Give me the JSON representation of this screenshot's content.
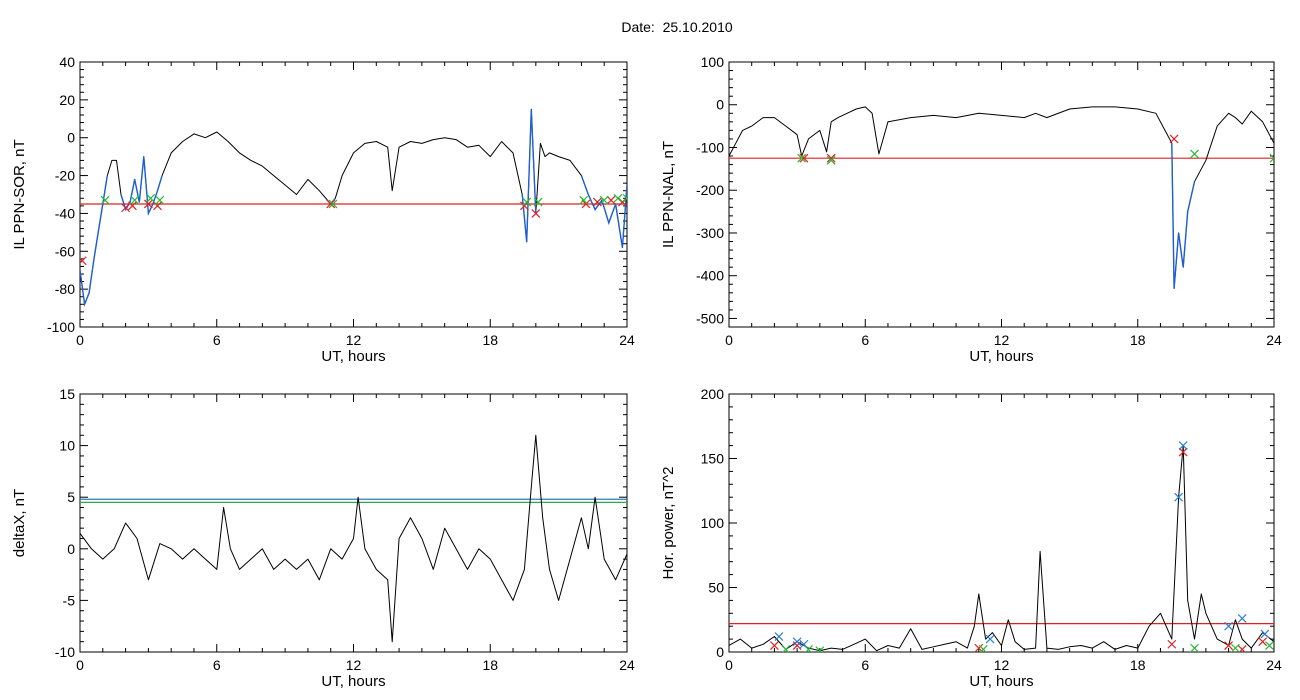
{
  "figure": {
    "title": "Date:  25.10.2010",
    "colors": {
      "trace": "#000000",
      "highlight": "#1f5fd6",
      "threshold_red": "#e02020",
      "threshold_blue": "#2a7fb8",
      "threshold_green": "#2fa84f",
      "marker_red": "#e02020",
      "marker_green": "#22bb33",
      "marker_blue": "#2a7fd8"
    }
  },
  "chart_data": [
    {
      "id": "ppn-sor",
      "type": "line",
      "xlabel": "UT, hours",
      "ylabel": "IL PPN-SOR, nT",
      "xlim": [
        0,
        24
      ],
      "ylim": [
        -100,
        40
      ],
      "xticks": [
        "0",
        "6",
        "12",
        "18",
        "24"
      ],
      "yticks": [
        "-100",
        "-80",
        "-60",
        "-40",
        "-20",
        "0",
        "20",
        "40"
      ],
      "threshold": -35,
      "x": [
        0,
        0.2,
        0.4,
        0.6,
        0.8,
        1.0,
        1.2,
        1.4,
        1.6,
        1.8,
        2.0,
        2.2,
        2.4,
        2.6,
        2.8,
        3.0,
        3.2,
        3.4,
        3.6,
        4.0,
        4.5,
        5.0,
        5.5,
        6.0,
        6.5,
        7.0,
        7.5,
        8.0,
        8.5,
        9.0,
        9.5,
        10.0,
        10.5,
        11.0,
        11.2,
        11.5,
        12.0,
        12.5,
        13.0,
        13.5,
        13.7,
        14.0,
        14.5,
        15.0,
        15.5,
        16.0,
        16.5,
        17.0,
        17.5,
        18.0,
        18.5,
        19.0,
        19.4,
        19.6,
        19.8,
        20.0,
        20.2,
        20.4,
        20.6,
        21.0,
        21.5,
        22.0,
        22.3,
        22.6,
        22.9,
        23.2,
        23.5,
        23.8,
        24.0
      ],
      "y": [
        -70,
        -88,
        -82,
        -65,
        -50,
        -35,
        -20,
        -12,
        -12,
        -30,
        -38,
        -34,
        -22,
        -34,
        -10,
        -40,
        -35,
        -28,
        -20,
        -8,
        -2,
        2,
        0,
        3,
        -2,
        -8,
        -12,
        -15,
        -20,
        -25,
        -30,
        -22,
        -28,
        -35,
        -32,
        -20,
        -8,
        -3,
        -2,
        -5,
        -28,
        -5,
        -2,
        -3,
        -1,
        0,
        -1,
        -5,
        -4,
        -10,
        -2,
        -8,
        -30,
        -55,
        15,
        -40,
        -3,
        -10,
        -8,
        -10,
        -12,
        -20,
        -30,
        -38,
        -33,
        -45,
        -35,
        -58,
        -25
      ],
      "highlight_ranges": [
        [
          0,
          1.2
        ],
        [
          1.8,
          3.6
        ],
        [
          11.0,
          11.2
        ],
        [
          19.4,
          20.0
        ],
        [
          22.0,
          24.0
        ]
      ],
      "markers_red": [
        [
          0.1,
          -65
        ],
        [
          2.0,
          -37
        ],
        [
          2.3,
          -36
        ],
        [
          3.0,
          -35
        ],
        [
          3.4,
          -36
        ],
        [
          11.0,
          -35
        ],
        [
          19.5,
          -36
        ],
        [
          20.0,
          -40
        ],
        [
          22.2,
          -35
        ],
        [
          22.7,
          -34
        ],
        [
          23.3,
          -33
        ],
        [
          23.8,
          -34
        ]
      ],
      "markers_green": [
        [
          1.1,
          -33
        ],
        [
          2.4,
          -33
        ],
        [
          3.1,
          -32
        ],
        [
          3.5,
          -33
        ],
        [
          11.1,
          -35
        ],
        [
          19.6,
          -34
        ],
        [
          20.1,
          -34
        ],
        [
          22.1,
          -33
        ],
        [
          23.0,
          -33
        ],
        [
          23.6,
          -32
        ],
        [
          24.0,
          -32
        ]
      ]
    },
    {
      "id": "ppn-nal",
      "type": "line",
      "xlabel": "UT, hours",
      "ylabel": "IL PPN-NAL, nT",
      "xlim": [
        0,
        24
      ],
      "ylim": [
        -520,
        100
      ],
      "xticks": [
        "0",
        "6",
        "12",
        "18",
        "24"
      ],
      "yticks": [
        "-500",
        "-400",
        "-300",
        "-200",
        "-100",
        "0",
        "100"
      ],
      "threshold": -125,
      "x": [
        0,
        0.3,
        0.6,
        1.0,
        1.5,
        2.0,
        2.5,
        3.0,
        3.2,
        3.5,
        4.0,
        4.3,
        4.5,
        4.8,
        5.2,
        5.6,
        6.0,
        6.3,
        6.6,
        7.0,
        8.0,
        9.0,
        10.0,
        11.0,
        12.0,
        13.0,
        13.5,
        14.0,
        15.0,
        16.0,
        17.0,
        18.0,
        18.8,
        19.2,
        19.5,
        19.6,
        19.8,
        20.0,
        20.2,
        20.5,
        21.0,
        21.5,
        22.0,
        22.3,
        22.6,
        23.0,
        23.5,
        24.0
      ],
      "y": [
        -120,
        -90,
        -60,
        -50,
        -30,
        -30,
        -50,
        -70,
        -120,
        -80,
        -60,
        -110,
        -40,
        -30,
        -20,
        -10,
        -5,
        -20,
        -115,
        -40,
        -30,
        -25,
        -30,
        -20,
        -25,
        -30,
        -20,
        -30,
        -10,
        -5,
        -5,
        -10,
        -20,
        -60,
        -90,
        -430,
        -300,
        -380,
        -250,
        -180,
        -130,
        -50,
        -20,
        -30,
        -45,
        -15,
        -40,
        -90
      ],
      "highlight_ranges": [
        [
          19.5,
          20.5
        ]
      ],
      "markers_red": [
        [
          3.3,
          -125
        ],
        [
          4.5,
          -125
        ],
        [
          19.6,
          -80
        ]
      ],
      "markers_green": [
        [
          3.2,
          -125
        ],
        [
          4.5,
          -130
        ],
        [
          20.5,
          -115
        ],
        [
          24.0,
          -125
        ]
      ]
    },
    {
      "id": "deltax",
      "type": "line",
      "xlabel": "UT, hours",
      "ylabel": "deltaX, nT",
      "xlim": [
        0,
        24
      ],
      "ylim": [
        -10,
        15
      ],
      "xticks": [
        "0",
        "6",
        "12",
        "18",
        "24"
      ],
      "yticks": [
        "-10",
        "-5",
        "0",
        "5",
        "10",
        "15"
      ],
      "threshold_lines": [
        {
          "value": 4.8,
          "color": "blue"
        },
        {
          "value": 4.5,
          "color": "green"
        }
      ],
      "x": [
        0,
        0.5,
        1.0,
        1.5,
        2.0,
        2.5,
        3.0,
        3.5,
        4.0,
        4.5,
        5.0,
        5.5,
        6.0,
        6.3,
        6.6,
        7.0,
        7.5,
        8.0,
        8.5,
        9.0,
        9.5,
        10.0,
        10.5,
        11.0,
        11.5,
        12.0,
        12.2,
        12.5,
        13.0,
        13.5,
        13.7,
        14.0,
        14.5,
        15.0,
        15.5,
        16.0,
        16.5,
        17.0,
        17.5,
        18.0,
        18.5,
        19.0,
        19.5,
        19.8,
        20.0,
        20.3,
        20.6,
        21.0,
        21.5,
        22.0,
        22.3,
        22.6,
        23.0,
        23.5,
        24.0
      ],
      "y": [
        1.5,
        0,
        -1,
        0,
        2.5,
        1,
        -3,
        0.5,
        0,
        -1,
        0,
        -1,
        -2,
        4,
        0,
        -2,
        -1,
        0,
        -2,
        -1,
        -2,
        -1,
        -3,
        0,
        -1,
        1,
        5,
        0,
        -2,
        -3,
        -9,
        1,
        3,
        1,
        -2,
        2,
        0,
        -2,
        0,
        -1,
        -3,
        -5,
        -2,
        6,
        11,
        3,
        -2,
        -5,
        -1,
        3,
        0,
        5,
        -1,
        -3,
        -0.5
      ]
    },
    {
      "id": "hor-power",
      "type": "line",
      "xlabel": "UT, hours",
      "ylabel": "Hor. power, nT^2",
      "xlim": [
        0,
        24
      ],
      "ylim": [
        0,
        200
      ],
      "xticks": [
        "0",
        "6",
        "12",
        "18",
        "24"
      ],
      "yticks": [
        "0",
        "50",
        "100",
        "150",
        "200"
      ],
      "threshold": 22,
      "x": [
        0,
        0.5,
        1.0,
        1.5,
        2.0,
        2.5,
        3.0,
        3.5,
        4.0,
        4.5,
        5.0,
        5.5,
        6.0,
        6.5,
        7.0,
        7.5,
        8.0,
        8.5,
        9.0,
        9.5,
        10.0,
        10.5,
        10.8,
        11.0,
        11.3,
        11.6,
        12.0,
        12.3,
        12.6,
        13.0,
        13.5,
        13.7,
        14.0,
        14.5,
        15.0,
        15.5,
        16.0,
        16.5,
        17.0,
        17.5,
        18.0,
        18.5,
        19.0,
        19.5,
        19.8,
        20.0,
        20.2,
        20.5,
        20.8,
        21.0,
        21.5,
        22.0,
        22.3,
        22.6,
        23.0,
        23.5,
        24.0
      ],
      "y": [
        5,
        10,
        3,
        6,
        12,
        2,
        8,
        3,
        1,
        3,
        2,
        6,
        10,
        1,
        5,
        3,
        18,
        2,
        4,
        6,
        8,
        3,
        20,
        45,
        10,
        15,
        5,
        25,
        8,
        2,
        3,
        78,
        3,
        2,
        4,
        5,
        3,
        8,
        2,
        5,
        3,
        20,
        30,
        10,
        120,
        160,
        40,
        10,
        45,
        30,
        10,
        5,
        25,
        10,
        3,
        15,
        8
      ],
      "markers_red": [
        [
          2.0,
          5
        ],
        [
          3.0,
          5
        ],
        [
          11.0,
          3
        ],
        [
          19.5,
          6
        ],
        [
          20.0,
          155
        ],
        [
          22.0,
          5
        ],
        [
          22.6,
          2
        ],
        [
          23.5,
          8
        ]
      ],
      "markers_green": [
        [
          2.5,
          2
        ],
        [
          3.5,
          2
        ],
        [
          4.0,
          1
        ],
        [
          11.2,
          2
        ],
        [
          20.5,
          3
        ],
        [
          22.3,
          3
        ],
        [
          23.8,
          5
        ]
      ],
      "markers_blue": [
        [
          2.2,
          12
        ],
        [
          3.0,
          8
        ],
        [
          3.3,
          6
        ],
        [
          11.5,
          10
        ],
        [
          19.8,
          120
        ],
        [
          20.0,
          160
        ],
        [
          22.0,
          20
        ],
        [
          22.6,
          26
        ],
        [
          23.6,
          14
        ]
      ]
    }
  ]
}
